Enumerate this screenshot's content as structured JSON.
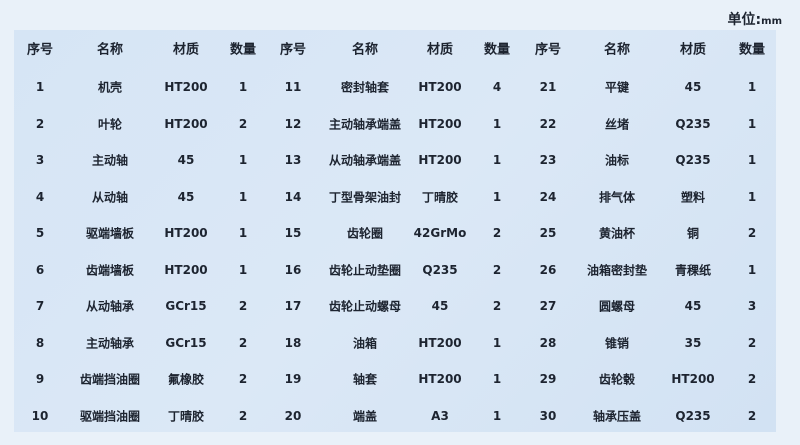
{
  "unit_label": "单位:",
  "unit_value": "mm",
  "headers": [
    "序号",
    "名称",
    "材质",
    "数量",
    "序号",
    "名称",
    "材质",
    "数量",
    "序号",
    "名称",
    "材质",
    "数量"
  ],
  "rows": [
    [
      "1",
      "机壳",
      "HT200",
      "1",
      "11",
      "密封轴套",
      "HT200",
      "4",
      "21",
      "平键",
      "45",
      "1"
    ],
    [
      "2",
      "叶轮",
      "HT200",
      "2",
      "12",
      "主动轴承端盖",
      "HT200",
      "1",
      "22",
      "丝堵",
      "Q235",
      "1"
    ],
    [
      "3",
      "主动轴",
      "45",
      "1",
      "13",
      "从动轴承端盖",
      "HT200",
      "1",
      "23",
      "油标",
      "Q235",
      "1"
    ],
    [
      "4",
      "从动轴",
      "45",
      "1",
      "14",
      "丁型骨架油封",
      "丁晴胶",
      "1",
      "24",
      "排气体",
      "塑料",
      "1"
    ],
    [
      "5",
      "驱端墙板",
      "HT200",
      "1",
      "15",
      "齿轮圈",
      "42GrMo",
      "2",
      "25",
      "黄油杯",
      "铜",
      "2"
    ],
    [
      "6",
      "齿端墙板",
      "HT200",
      "1",
      "16",
      "齿轮止动垫圈",
      "Q235",
      "2",
      "26",
      "油箱密封垫",
      "青稞纸",
      "1"
    ],
    [
      "7",
      "从动轴承",
      "GCr15",
      "2",
      "17",
      "齿轮止动螺母",
      "45",
      "2",
      "27",
      "圆螺母",
      "45",
      "3"
    ],
    [
      "8",
      "主动轴承",
      "GCr15",
      "2",
      "18",
      "油箱",
      "HT200",
      "1",
      "28",
      "锥销",
      "35",
      "2"
    ],
    [
      "9",
      "齿端挡油圈",
      "氟橡胶",
      "2",
      "19",
      "轴套",
      "HT200",
      "1",
      "29",
      "齿轮毂",
      "HT200",
      "2"
    ],
    [
      "10",
      "驱端挡油圈",
      "丁晴胶",
      "2",
      "20",
      "端盖",
      "A3",
      "1",
      "30",
      "轴承压盖",
      "Q235",
      "2"
    ]
  ]
}
